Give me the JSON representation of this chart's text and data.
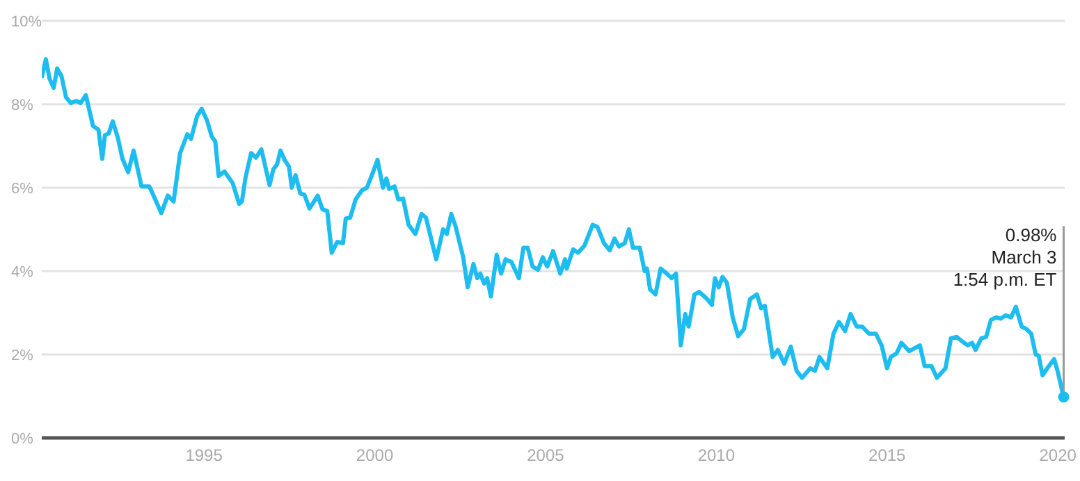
{
  "chart_data": {
    "type": "line",
    "x": [
      1990.26,
      1990.37,
      1990.48,
      1990.6,
      1990.7,
      1990.83,
      1990.96,
      1991.1,
      1991.26,
      1991.39,
      1991.54,
      1991.75,
      1991.91,
      1992.02,
      1992.1,
      1992.21,
      1992.33,
      1992.48,
      1992.61,
      1992.78,
      1992.94,
      1993.17,
      1993.4,
      1993.54,
      1993.75,
      1993.94,
      1994.11,
      1994.3,
      1994.51,
      1994.62,
      1994.8,
      1994.93,
      1995.09,
      1995.23,
      1995.33,
      1995.43,
      1995.6,
      1995.84,
      1996.03,
      1996.11,
      1996.22,
      1996.38,
      1996.52,
      1996.68,
      1996.92,
      1997.03,
      1997.14,
      1997.24,
      1997.36,
      1997.49,
      1997.57,
      1997.68,
      1997.82,
      1997.94,
      1998.09,
      1998.33,
      1998.47,
      1998.61,
      1998.74,
      1998.9,
      1999.07,
      1999.15,
      1999.28,
      1999.44,
      1999.63,
      1999.77,
      1999.93,
      2000.08,
      2000.24,
      2000.34,
      2000.42,
      2000.58,
      2000.69,
      2000.83,
      2000.99,
      2001.19,
      2001.37,
      2001.5,
      2001.8,
      2002.0,
      2002.11,
      2002.24,
      2002.37,
      2002.59,
      2002.72,
      2002.89,
      2003.0,
      2003.09,
      2003.2,
      2003.29,
      2003.4,
      2003.57,
      2003.7,
      2003.83,
      2004.0,
      2004.22,
      2004.35,
      2004.48,
      2004.62,
      2004.78,
      2004.92,
      2005.05,
      2005.22,
      2005.43,
      2005.57,
      2005.62,
      2005.81,
      2005.95,
      2006.14,
      2006.38,
      2006.52,
      2006.71,
      2006.88,
      2007.02,
      2007.15,
      2007.32,
      2007.44,
      2007.56,
      2007.76,
      2007.9,
      2007.97,
      2008.06,
      2008.22,
      2008.37,
      2008.55,
      2008.69,
      2008.82,
      2008.96,
      2009.09,
      2009.19,
      2009.36,
      2009.5,
      2009.73,
      2009.87,
      2009.96,
      2010.07,
      2010.18,
      2010.31,
      2010.48,
      2010.64,
      2010.81,
      2010.99,
      2011.19,
      2011.31,
      2011.42,
      2011.65,
      2011.8,
      2011.99,
      2012.18,
      2012.35,
      2012.51,
      2012.75,
      2012.89,
      2013.02,
      2013.25,
      2013.43,
      2013.59,
      2013.77,
      2013.93,
      2014.11,
      2014.27,
      2014.47,
      2014.67,
      2014.84,
      2015.0,
      2015.11,
      2015.28,
      2015.42,
      2015.65,
      2015.96,
      2016.1,
      2016.3,
      2016.46,
      2016.71,
      2016.87,
      2017.04,
      2017.22,
      2017.36,
      2017.49,
      2017.59,
      2017.76,
      2017.9,
      2018.04,
      2018.2,
      2018.33,
      2018.47,
      2018.63,
      2018.77,
      2018.94,
      2019.08,
      2019.22,
      2019.35,
      2019.44,
      2019.55,
      2019.69,
      2019.89,
      2019.99,
      2020.17
    ],
    "series": [
      {
        "color": "#1ebdf0",
        "values": [
          8.67,
          9.08,
          8.61,
          8.39,
          8.86,
          8.67,
          8.17,
          8.03,
          8.08,
          8.03,
          8.22,
          7.48,
          7.39,
          6.69,
          7.26,
          7.3,
          7.59,
          7.19,
          6.7,
          6.37,
          6.89,
          6.03,
          6.03,
          5.78,
          5.39,
          5.81,
          5.67,
          6.83,
          7.28,
          7.17,
          7.72,
          7.89,
          7.61,
          7.22,
          7.11,
          6.28,
          6.39,
          6.11,
          5.61,
          5.67,
          6.26,
          6.83,
          6.72,
          6.92,
          6.06,
          6.44,
          6.56,
          6.89,
          6.67,
          6.5,
          6.0,
          6.3,
          5.86,
          5.83,
          5.5,
          5.81,
          5.48,
          5.44,
          4.44,
          4.7,
          4.67,
          5.26,
          5.28,
          5.72,
          5.94,
          6.0,
          6.33,
          6.67,
          6.0,
          6.22,
          5.97,
          6.03,
          5.72,
          5.74,
          5.11,
          4.89,
          5.37,
          5.28,
          4.28,
          5.0,
          4.89,
          5.37,
          5.06,
          4.33,
          3.61,
          4.17,
          3.83,
          3.94,
          3.7,
          3.83,
          3.39,
          4.39,
          3.94,
          4.28,
          4.22,
          3.83,
          4.56,
          4.56,
          4.11,
          4.03,
          4.33,
          4.11,
          4.48,
          3.94,
          4.28,
          4.06,
          4.52,
          4.44,
          4.61,
          5.11,
          5.06,
          4.67,
          4.5,
          4.78,
          4.59,
          4.67,
          5.0,
          4.56,
          4.56,
          4.0,
          4.06,
          3.56,
          3.44,
          4.06,
          3.94,
          3.83,
          3.94,
          2.22,
          2.97,
          2.67,
          3.44,
          3.5,
          3.33,
          3.19,
          3.83,
          3.61,
          3.86,
          3.72,
          2.89,
          2.44,
          2.61,
          3.33,
          3.44,
          3.11,
          3.17,
          1.94,
          2.11,
          1.78,
          2.19,
          1.61,
          1.44,
          1.67,
          1.61,
          1.94,
          1.67,
          2.5,
          2.78,
          2.56,
          2.97,
          2.67,
          2.67,
          2.5,
          2.5,
          2.22,
          1.67,
          1.94,
          2.03,
          2.28,
          2.08,
          2.22,
          1.72,
          1.72,
          1.44,
          1.67,
          2.39,
          2.42,
          2.3,
          2.22,
          2.28,
          2.11,
          2.39,
          2.42,
          2.83,
          2.89,
          2.86,
          2.94,
          2.89,
          3.14,
          2.67,
          2.61,
          2.5,
          2.0,
          1.97,
          1.5,
          1.67,
          1.89,
          1.61,
          0.98
        ]
      }
    ],
    "xlim": [
      1990.25,
      2020.2
    ],
    "xticks": [
      1995,
      2000,
      2005,
      2010,
      2015,
      2020
    ],
    "ylim": [
      0,
      10
    ],
    "yticks": [
      {
        "value": 0,
        "label": "0%"
      },
      {
        "value": 2,
        "label": "2%"
      },
      {
        "value": 4,
        "label": "4%"
      },
      {
        "value": 6,
        "label": "6%"
      },
      {
        "value": 8,
        "label": "8%"
      },
      {
        "value": 10,
        "label": "10%"
      }
    ],
    "grid": "y",
    "legend": false,
    "annotations": [
      {
        "text": "0.98%\nMarch 3\n1:54 p.m. ET",
        "x": 2020.17,
        "y": 0.98
      }
    ]
  }
}
